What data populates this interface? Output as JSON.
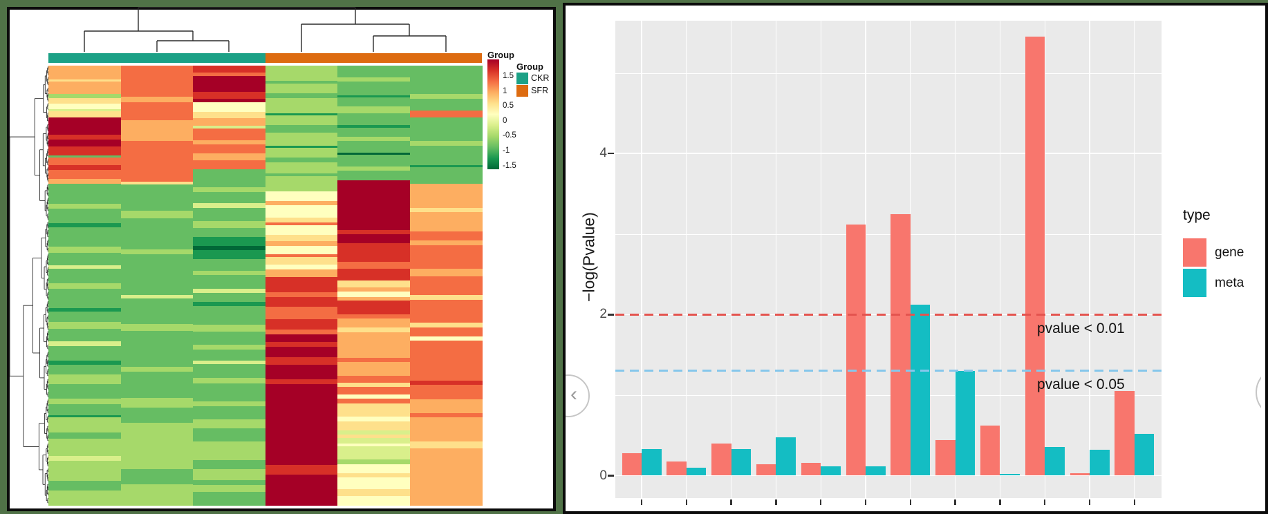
{
  "canvas": {
    "bg_color": "#507247"
  },
  "left_panel": {
    "annotation_label": "Group",
    "legend_title": "Group",
    "groups": [
      {
        "name": "CKR",
        "color": "#1CA186"
      },
      {
        "name": "SFR",
        "color": "#DD6B10"
      }
    ],
    "colorbar": {
      "tick_labels": [
        "1.5",
        "1",
        "0.5",
        "0",
        "-0.5",
        "-1",
        "-1.5"
      ],
      "gradient": [
        "#A50026",
        "#D73027",
        "#F46D43",
        "#FDAE61",
        "#FEE08B",
        "#FFFFBF",
        "#D9EF8B",
        "#A6D96A",
        "#66BD63",
        "#1A9850",
        "#006837"
      ]
    },
    "heatmap": {
      "n_columns": 6,
      "column_groups": [
        "CKR",
        "CKR",
        "CKR",
        "SFR",
        "SFR",
        "SFR"
      ],
      "palette": {
        "A": "#A50026",
        "R": "#D73027",
        "O": "#F46D43",
        "N": "#FDAE61",
        "C": "#FEE08B",
        "Y": "#FFFFBF",
        "P": "#D9EF8B",
        "L": "#A6D96A",
        "G": "#66BD63",
        "D": "#1A9850",
        "E": "#006837"
      },
      "columns": [
        [
          [
            2.6,
            "N"
          ],
          [
            0.5,
            "C"
          ],
          [
            2.4,
            "N"
          ],
          [
            0.7,
            "L"
          ],
          [
            1.1,
            "C"
          ],
          [
            1.0,
            "Y"
          ],
          [
            0.5,
            "P"
          ],
          [
            1.1,
            "C"
          ],
          [
            3.4,
            "A"
          ],
          [
            0.9,
            "R"
          ],
          [
            1.3,
            "A"
          ],
          [
            1.7,
            "R"
          ],
          [
            0.4,
            "G"
          ],
          [
            1.5,
            "O"
          ],
          [
            1.0,
            "R"
          ],
          [
            1.7,
            "O"
          ],
          [
            0.9,
            "N"
          ],
          [
            3.8,
            "G"
          ],
          [
            1.0,
            "L"
          ],
          [
            2.8,
            "G"
          ],
          [
            0.7,
            "D"
          ],
          [
            3.8,
            "G"
          ],
          [
            1.2,
            "L"
          ],
          [
            2.4,
            "G"
          ],
          [
            0.6,
            "P"
          ],
          [
            2.8,
            "G"
          ],
          [
            1.0,
            "L"
          ],
          [
            3.8,
            "G"
          ],
          [
            0.7,
            "D"
          ],
          [
            1.9,
            "G"
          ],
          [
            1.4,
            "L"
          ],
          [
            2.4,
            "G"
          ],
          [
            0.9,
            "P"
          ],
          [
            2.8,
            "G"
          ],
          [
            0.7,
            "D"
          ],
          [
            1.9,
            "G"
          ],
          [
            1.9,
            "L"
          ],
          [
            2.8,
            "G"
          ],
          [
            1.0,
            "L"
          ],
          [
            2.1,
            "G"
          ],
          [
            0.5,
            "D"
          ],
          [
            2.8,
            "L"
          ],
          [
            1.3,
            "G"
          ],
          [
            3.3,
            "L"
          ],
          [
            0.9,
            "P"
          ],
          [
            3.8,
            "L"
          ],
          [
            1.9,
            "G"
          ],
          [
            2.8,
            "L"
          ]
        ],
        [
          [
            5.5,
            "O"
          ],
          [
            1.0,
            "N"
          ],
          [
            3.2,
            "O"
          ],
          [
            3.7,
            "N"
          ],
          [
            7.3,
            "O"
          ],
          [
            0.5,
            "C"
          ],
          [
            4.6,
            "G"
          ],
          [
            1.4,
            "L"
          ],
          [
            5.5,
            "G"
          ],
          [
            0.9,
            "L"
          ],
          [
            7.3,
            "G"
          ],
          [
            0.6,
            "P"
          ],
          [
            4.6,
            "G"
          ],
          [
            1.2,
            "L"
          ],
          [
            6.4,
            "G"
          ],
          [
            0.9,
            "L"
          ],
          [
            4.6,
            "G"
          ],
          [
            1.8,
            "L"
          ],
          [
            2.7,
            "G"
          ],
          [
            8.2,
            "L"
          ],
          [
            2.7,
            "G"
          ],
          [
            3.7,
            "L"
          ]
        ],
        [
          [
            1.4,
            "R"
          ],
          [
            0.7,
            "O"
          ],
          [
            3.2,
            "A"
          ],
          [
            1.4,
            "R"
          ],
          [
            0.7,
            "A"
          ],
          [
            2.0,
            "Y"
          ],
          [
            1.2,
            "C"
          ],
          [
            1.6,
            "N"
          ],
          [
            0.5,
            "P"
          ],
          [
            2.3,
            "O"
          ],
          [
            0.9,
            "N"
          ],
          [
            1.8,
            "O"
          ],
          [
            1.4,
            "N"
          ],
          [
            1.8,
            "O"
          ],
          [
            3.7,
            "G"
          ],
          [
            0.9,
            "L"
          ],
          [
            2.3,
            "G"
          ],
          [
            0.9,
            "P"
          ],
          [
            2.7,
            "G"
          ],
          [
            1.4,
            "L"
          ],
          [
            1.8,
            "G"
          ],
          [
            1.8,
            "D"
          ],
          [
            0.9,
            "E"
          ],
          [
            1.8,
            "D"
          ],
          [
            2.3,
            "G"
          ],
          [
            0.9,
            "L"
          ],
          [
            2.7,
            "G"
          ],
          [
            0.9,
            "P"
          ],
          [
            1.8,
            "G"
          ],
          [
            0.9,
            "D"
          ],
          [
            3.7,
            "G"
          ],
          [
            1.4,
            "L"
          ],
          [
            2.7,
            "G"
          ],
          [
            0.9,
            "L"
          ],
          [
            2.3,
            "G"
          ],
          [
            0.7,
            "P"
          ],
          [
            2.7,
            "G"
          ],
          [
            1.1,
            "L"
          ],
          [
            3.7,
            "G"
          ],
          [
            0.9,
            "L"
          ],
          [
            2.7,
            "G"
          ],
          [
            1.8,
            "L"
          ],
          [
            2.7,
            "G"
          ],
          [
            3.7,
            "L"
          ],
          [
            1.8,
            "G"
          ],
          [
            2.3,
            "L"
          ],
          [
            0.9,
            "G"
          ],
          [
            1.4,
            "L"
          ],
          [
            2.7,
            "G"
          ]
        ],
        [
          [
            2.7,
            "L"
          ],
          [
            0.5,
            "G"
          ],
          [
            1.8,
            "L"
          ],
          [
            0.9,
            "G"
          ],
          [
            2.7,
            "L"
          ],
          [
            0.4,
            "D"
          ],
          [
            1.8,
            "L"
          ],
          [
            1.4,
            "G"
          ],
          [
            2.3,
            "L"
          ],
          [
            0.4,
            "D"
          ],
          [
            1.8,
            "L"
          ],
          [
            0.9,
            "G"
          ],
          [
            2.0,
            "L"
          ],
          [
            0.5,
            "G"
          ],
          [
            2.7,
            "L"
          ],
          [
            1.8,
            "Y"
          ],
          [
            0.7,
            "N"
          ],
          [
            2.3,
            "Y"
          ],
          [
            0.9,
            "C"
          ],
          [
            0.5,
            "O"
          ],
          [
            1.8,
            "Y"
          ],
          [
            1.1,
            "C"
          ],
          [
            0.9,
            "N"
          ],
          [
            1.4,
            "Y"
          ],
          [
            0.5,
            "O"
          ],
          [
            1.4,
            "C"
          ],
          [
            0.9,
            "Y"
          ],
          [
            1.4,
            "N"
          ],
          [
            2.7,
            "R"
          ],
          [
            0.9,
            "O"
          ],
          [
            1.8,
            "R"
          ],
          [
            2.3,
            "O"
          ],
          [
            1.8,
            "R"
          ],
          [
            0.9,
            "O"
          ],
          [
            1.4,
            "A"
          ],
          [
            0.9,
            "R"
          ],
          [
            1.8,
            "A"
          ],
          [
            1.4,
            "R"
          ],
          [
            2.7,
            "A"
          ],
          [
            0.9,
            "R"
          ],
          [
            14.6,
            "A"
          ],
          [
            1.8,
            "R"
          ],
          [
            5.5,
            "A"
          ]
        ],
        [
          [
            2.3,
            "G"
          ],
          [
            0.9,
            "L"
          ],
          [
            2.7,
            "G"
          ],
          [
            0.5,
            "D"
          ],
          [
            1.8,
            "G"
          ],
          [
            1.4,
            "L"
          ],
          [
            2.3,
            "G"
          ],
          [
            0.5,
            "D"
          ],
          [
            1.8,
            "G"
          ],
          [
            0.9,
            "L"
          ],
          [
            2.3,
            "G"
          ],
          [
            0.5,
            "E"
          ],
          [
            2.3,
            "G"
          ],
          [
            0.9,
            "L"
          ],
          [
            1.8,
            "G"
          ],
          [
            10.0,
            "A"
          ],
          [
            0.9,
            "R"
          ],
          [
            1.8,
            "A"
          ],
          [
            3.7,
            "R"
          ],
          [
            1.4,
            "O"
          ],
          [
            2.3,
            "R"
          ],
          [
            1.4,
            "C"
          ],
          [
            0.9,
            "N"
          ],
          [
            1.1,
            "Y"
          ],
          [
            0.7,
            "N"
          ],
          [
            2.7,
            "R"
          ],
          [
            0.9,
            "O"
          ],
          [
            1.8,
            "N"
          ],
          [
            0.9,
            "C"
          ],
          [
            1.4,
            "N"
          ],
          [
            3.7,
            "N"
          ],
          [
            0.9,
            "O"
          ],
          [
            2.7,
            "N"
          ],
          [
            1.4,
            "O"
          ],
          [
            0.9,
            "C"
          ],
          [
            1.4,
            "O"
          ],
          [
            0.9,
            "Y"
          ],
          [
            0.9,
            "O"
          ],
          [
            2.7,
            "C"
          ],
          [
            0.9,
            "Y"
          ],
          [
            1.8,
            "C"
          ],
          [
            0.9,
            "P"
          ],
          [
            0.7,
            "C"
          ],
          [
            1.1,
            "P"
          ],
          [
            0.5,
            "Y"
          ],
          [
            2.7,
            "P"
          ],
          [
            0.9,
            "L"
          ],
          [
            1.8,
            "Y"
          ],
          [
            0.9,
            "C"
          ],
          [
            2.3,
            "Y"
          ],
          [
            1.4,
            "C"
          ],
          [
            1.8,
            "Y"
          ]
        ],
        [
          [
            5.5,
            "G"
          ],
          [
            0.9,
            "L"
          ],
          [
            2.3,
            "G"
          ],
          [
            1.4,
            "O"
          ],
          [
            4.6,
            "G"
          ],
          [
            0.9,
            "L"
          ],
          [
            3.7,
            "G"
          ],
          [
            0.5,
            "D"
          ],
          [
            3.2,
            "G"
          ],
          [
            4.6,
            "N"
          ],
          [
            0.9,
            "C"
          ],
          [
            3.7,
            "N"
          ],
          [
            1.8,
            "O"
          ],
          [
            0.9,
            "N"
          ],
          [
            4.6,
            "O"
          ],
          [
            1.4,
            "N"
          ],
          [
            3.7,
            "O"
          ],
          [
            0.9,
            "C"
          ],
          [
            2.7,
            "O"
          ],
          [
            1.8,
            "O"
          ],
          [
            0.9,
            "C"
          ],
          [
            1.8,
            "O"
          ],
          [
            0.7,
            "Y"
          ],
          [
            2.3,
            "O"
          ],
          [
            5.5,
            "O"
          ],
          [
            0.9,
            "R"
          ],
          [
            2.7,
            "O"
          ],
          [
            2.7,
            "N"
          ],
          [
            0.9,
            "O"
          ],
          [
            4.6,
            "N"
          ],
          [
            1.4,
            "C"
          ],
          [
            5.5,
            "N"
          ],
          [
            1.8,
            "N"
          ],
          [
            3.7,
            "N"
          ]
        ]
      ]
    }
  },
  "right_panel": {
    "chart_data": {
      "type": "bar",
      "title": "",
      "ylabel": "−log(Pvalue)",
      "xlabel": "",
      "y_ticks": [
        0,
        2,
        4
      ],
      "y_minor": [
        1,
        3,
        5
      ],
      "ylim": [
        0,
        5.6
      ],
      "n_groups": 12,
      "categories": [
        "",
        "",
        "",
        "",
        "",
        "",
        "",
        "",
        "",
        "",
        "",
        ""
      ],
      "series": [
        {
          "name": "gene",
          "color": "#F8766D",
          "values": [
            0.28,
            0.18,
            0.4,
            0.14,
            0.16,
            3.12,
            3.25,
            0.44,
            0.62,
            5.45,
            0.03,
            1.05
          ]
        },
        {
          "name": "meta",
          "color": "#14BDC3",
          "values": [
            0.33,
            0.1,
            0.33,
            0.48,
            0.12,
            0.12,
            2.12,
            1.3,
            0.02,
            0.36,
            0.32,
            0.52
          ]
        }
      ],
      "legend": {
        "title": "type",
        "position": "right"
      },
      "hlines": [
        {
          "value": 2.0,
          "label": "pvalue < 0.01",
          "color": "#E4544F"
        },
        {
          "value": 1.301,
          "label": "pvalue < 0.05",
          "color": "#86C7EB"
        }
      ],
      "panel_bg": "#EAEAEA",
      "grid": true
    },
    "nav": {
      "prev": "‹",
      "next": "›"
    }
  }
}
